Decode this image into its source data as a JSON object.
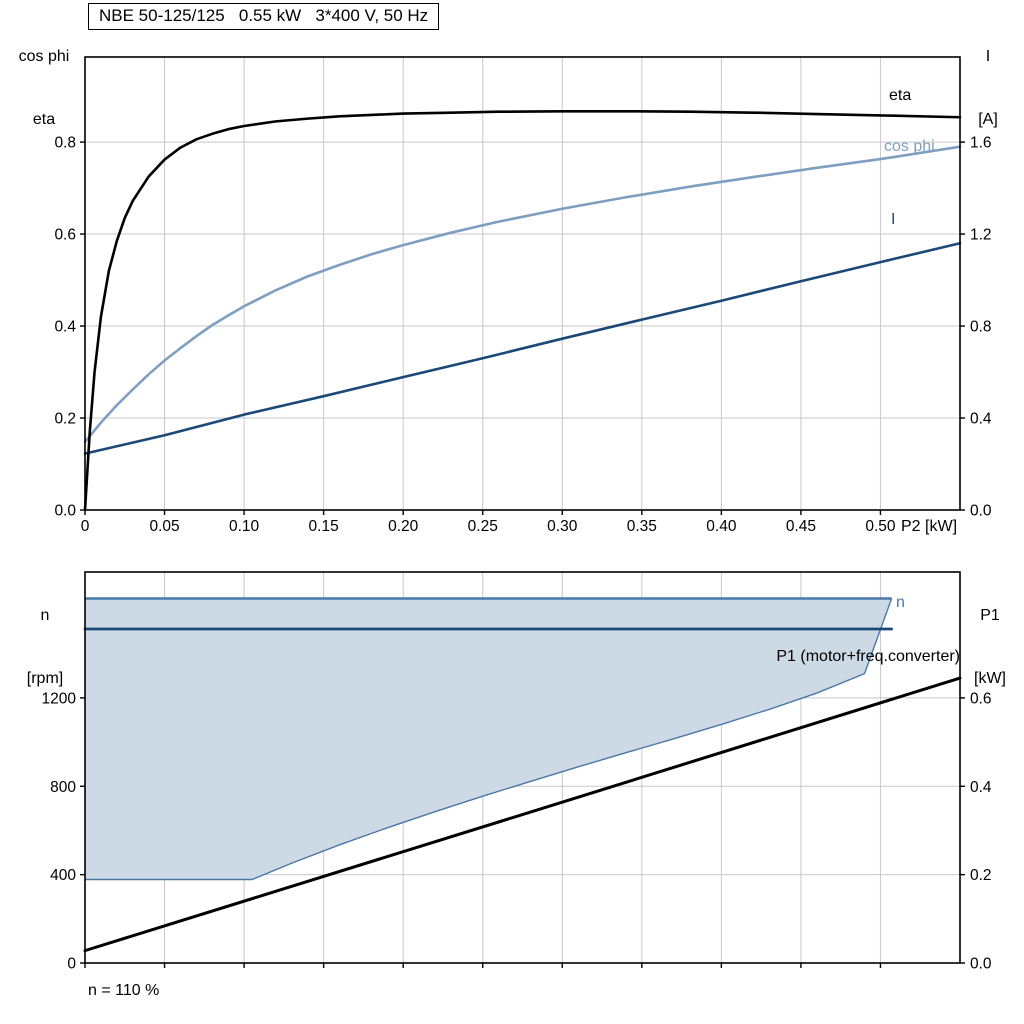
{
  "colors": {
    "black": "#000000",
    "steel": "#7e9fc1",
    "navy": "#1b4977",
    "band_fill": "#cdd9e5",
    "band_line": "#4a78a8",
    "grid": "#c8c8c8",
    "frame": "#000000"
  },
  "chart_data": [
    {
      "id": "motor-electrical-curves",
      "type": "line",
      "title": "NBE 50-125/125   0.55 kW   3*400 V, 50 Hz",
      "x_label": "P2 [kW]",
      "y_left_label": [
        "cos phi",
        "eta"
      ],
      "y_right_label": [
        "I",
        "[A]"
      ],
      "x_range": [
        0,
        0.55
      ],
      "y_left_range": [
        0,
        0.985
      ],
      "y_right_range": [
        0,
        1.97
      ],
      "grid": true,
      "x_ticks": [
        0,
        0.05,
        0.1,
        0.15,
        0.2,
        0.25,
        0.3,
        0.35,
        0.4,
        0.45,
        0.5
      ],
      "x_tick_labels": [
        "0",
        "0.05",
        "0.10",
        "0.15",
        "0.20",
        "0.25",
        "0.30",
        "0.35",
        "0.40",
        "0.45",
        "0.50"
      ],
      "y_left_ticks": [
        0,
        0.2,
        0.4,
        0.6,
        0.8
      ],
      "y_left_tick_labels": [
        "0.0",
        "0.2",
        "0.4",
        "0.6",
        "0.8"
      ],
      "y_right_ticks": [
        0,
        0.4,
        0.8,
        1.2,
        1.6
      ],
      "y_right_tick_labels": [
        "0.0",
        "0.4",
        "0.8",
        "1.2",
        "1.6"
      ],
      "series": [
        {
          "name": "I",
          "axis": "right",
          "color": "navy",
          "width": 2.6,
          "points": [
            [
              0,
              0.245
            ],
            [
              0.05,
              0.325
            ],
            [
              0.1,
              0.415
            ],
            [
              0.15,
              0.495
            ],
            [
              0.2,
              0.578
            ],
            [
              0.25,
              0.66
            ],
            [
              0.3,
              0.745
            ],
            [
              0.35,
              0.828
            ],
            [
              0.4,
              0.91
            ],
            [
              0.45,
              0.995
            ],
            [
              0.5,
              1.078
            ],
            [
              0.55,
              1.16
            ]
          ]
        },
        {
          "name": "cos phi",
          "axis": "left",
          "color": "steel",
          "width": 2.6,
          "points": [
            [
              0,
              0.148
            ],
            [
              0.01,
              0.19
            ],
            [
              0.02,
              0.228
            ],
            [
              0.03,
              0.262
            ],
            [
              0.04,
              0.295
            ],
            [
              0.05,
              0.325
            ],
            [
              0.06,
              0.352
            ],
            [
              0.07,
              0.378
            ],
            [
              0.08,
              0.402
            ],
            [
              0.09,
              0.423
            ],
            [
              0.1,
              0.443
            ],
            [
              0.12,
              0.478
            ],
            [
              0.14,
              0.508
            ],
            [
              0.16,
              0.533
            ],
            [
              0.18,
              0.556
            ],
            [
              0.2,
              0.576
            ],
            [
              0.23,
              0.603
            ],
            [
              0.26,
              0.627
            ],
            [
              0.3,
              0.655
            ],
            [
              0.34,
              0.68
            ],
            [
              0.38,
              0.703
            ],
            [
              0.42,
              0.724
            ],
            [
              0.46,
              0.744
            ],
            [
              0.5,
              0.763
            ],
            [
              0.55,
              0.79
            ]
          ]
        },
        {
          "name": "eta",
          "axis": "left",
          "color": "black",
          "width": 2.6,
          "points": [
            [
              0,
              0
            ],
            [
              0.003,
              0.17
            ],
            [
              0.006,
              0.3
            ],
            [
              0.01,
              0.42
            ],
            [
              0.015,
              0.52
            ],
            [
              0.02,
              0.585
            ],
            [
              0.025,
              0.635
            ],
            [
              0.03,
              0.672
            ],
            [
              0.04,
              0.725
            ],
            [
              0.05,
              0.762
            ],
            [
              0.06,
              0.788
            ],
            [
              0.07,
              0.806
            ],
            [
              0.08,
              0.818
            ],
            [
              0.09,
              0.828
            ],
            [
              0.1,
              0.835
            ],
            [
              0.12,
              0.845
            ],
            [
              0.14,
              0.851
            ],
            [
              0.16,
              0.856
            ],
            [
              0.18,
              0.859
            ],
            [
              0.2,
              0.862
            ],
            [
              0.23,
              0.864
            ],
            [
              0.26,
              0.866
            ],
            [
              0.3,
              0.867
            ],
            [
              0.34,
              0.867
            ],
            [
              0.38,
              0.866
            ],
            [
              0.42,
              0.864
            ],
            [
              0.46,
              0.861
            ],
            [
              0.5,
              0.858
            ],
            [
              0.55,
              0.854
            ]
          ]
        }
      ]
    },
    {
      "id": "speed-and-input-power",
      "type": "line",
      "annotation": "n = 110 %",
      "y_left_label": [
        "n",
        "[rpm]"
      ],
      "y_right_label": [
        "P1",
        "[kW]"
      ],
      "x_range": [
        0,
        0.55
      ],
      "y_left_range": [
        0,
        1770
      ],
      "y_right_range": [
        0,
        0.885
      ],
      "grid": true,
      "x_ticks": [
        0,
        0.05,
        0.1,
        0.15,
        0.2,
        0.25,
        0.3,
        0.35,
        0.4,
        0.45,
        0.5
      ],
      "x_tick_labels": [],
      "y_left_ticks": [
        0,
        400,
        800,
        1200
      ],
      "y_left_tick_labels": [
        "0",
        "400",
        "800",
        "1200"
      ],
      "y_right_ticks": [
        0,
        0.2,
        0.4,
        0.6
      ],
      "y_right_tick_labels": [
        "0.0",
        "0.2",
        "0.4",
        "0.6"
      ],
      "band": {
        "fill": "band_fill",
        "line": "band_line",
        "top": [
          [
            0,
            1650
          ],
          [
            0.507,
            1650
          ]
        ],
        "lower": [
          [
            0,
            378
          ],
          [
            0.105,
            378
          ],
          [
            0.13,
            452
          ],
          [
            0.16,
            535
          ],
          [
            0.19,
            612
          ],
          [
            0.22,
            685
          ],
          [
            0.25,
            755
          ],
          [
            0.28,
            822
          ],
          [
            0.31,
            888
          ],
          [
            0.34,
            952
          ],
          [
            0.37,
            1015
          ],
          [
            0.4,
            1080
          ],
          [
            0.43,
            1148
          ],
          [
            0.46,
            1222
          ],
          [
            0.49,
            1310
          ],
          [
            0.507,
            1650
          ]
        ]
      },
      "series": [
        {
          "name": "n",
          "axis": "left",
          "color": "navy",
          "width": 2.8,
          "points": [
            [
              0,
              1512
            ],
            [
              0.507,
              1512
            ]
          ]
        },
        {
          "name": "P1 (motor+freq.converter)",
          "axis": "right",
          "color": "black",
          "width": 3,
          "points": [
            [
              0,
              0.028
            ],
            [
              0.275,
              0.336
            ],
            [
              0.55,
              0.645
            ]
          ]
        }
      ]
    }
  ]
}
